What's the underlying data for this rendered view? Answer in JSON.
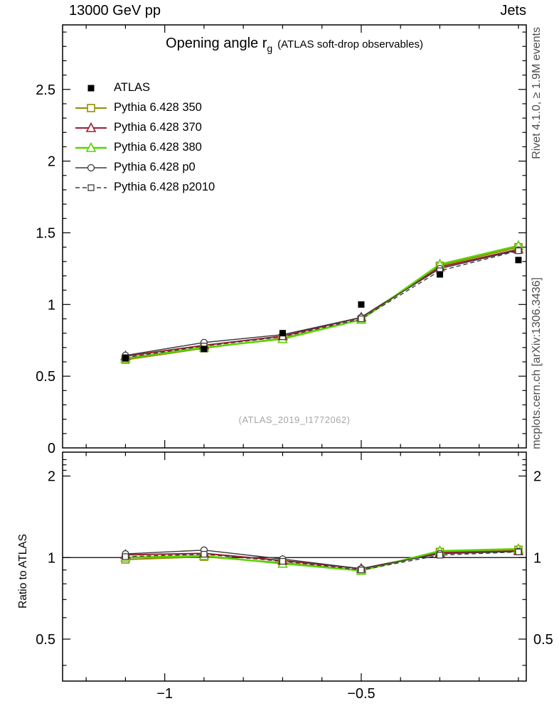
{
  "header": {
    "left": "13000 GeV pp",
    "right": "Jets"
  },
  "title": {
    "text": "Opening angle r",
    "subscript": "g",
    "suffix": "(ATLAS soft-drop observables)"
  },
  "watermark": "(ATLAS_2019_I1772062)",
  "side_notes": {
    "top": "Rivet 4.1.0, ≥ 1.9M events",
    "bottom": "mcplots.cern.ch [arXiv:1306.3436]"
  },
  "axes": {
    "ratio_ylabel": "Ratio to ATLAS"
  },
  "chart_data": {
    "type": "line",
    "title": "Opening angle r_g (ATLAS soft-drop observables)",
    "legend_position": "top-left",
    "grid": false,
    "x": [
      -1.1,
      -0.9,
      -0.7,
      -0.5,
      -0.3,
      -0.1
    ],
    "xlim": [
      -1.26,
      -0.08
    ],
    "ylim_main": [
      0,
      2.95
    ],
    "ylim_ratio": [
      0.35,
      2.45
    ],
    "ratio_scale": "log",
    "xticks_major": [
      -1,
      -0.5
    ],
    "xtick_labels": [
      "−1",
      "−0.5"
    ],
    "xticks_minor_step": 0.1,
    "yticks_main_major": [
      0,
      0.5,
      1,
      1.5,
      2,
      2.5
    ],
    "yticks_main_labels": [
      "0",
      "0.5",
      "1",
      "1.5",
      "2",
      "2.5"
    ],
    "yticks_ratio_major": [
      0.5,
      1,
      2
    ],
    "yticks_ratio_labels": [
      "0.5",
      "1",
      "2"
    ],
    "yticks_ratio_minor": [
      0.4,
      0.6,
      0.7,
      0.8,
      0.9,
      2.1,
      2.2,
      2.3
    ],
    "series": [
      {
        "name": "ATLAS",
        "marker": "filled-square",
        "color": "#000000",
        "line": "none",
        "is_reference": true,
        "values": [
          0.625,
          0.69,
          0.8,
          1.0,
          1.21,
          1.31
        ]
      },
      {
        "name": "Pythia 6.428 350",
        "marker": "open-square",
        "color": "#8f8f00",
        "line": "solid",
        "width": 2,
        "values": [
          0.615,
          0.695,
          0.765,
          0.895,
          1.27,
          1.4
        ]
      },
      {
        "name": "Pythia 6.428 370",
        "marker": "open-triangle",
        "color": "#9a2033",
        "line": "solid",
        "width": 2,
        "values": [
          0.64,
          0.715,
          0.78,
          0.91,
          1.26,
          1.385
        ]
      },
      {
        "name": "Pythia 6.428 380",
        "marker": "open-triangle",
        "color": "#5bd300",
        "line": "solid",
        "width": 2.5,
        "values": [
          0.625,
          0.7,
          0.76,
          0.895,
          1.28,
          1.41
        ]
      },
      {
        "name": "Pythia 6.428 p0",
        "marker": "open-circle",
        "color": "#3a3a3a",
        "line": "solid",
        "width": 1.4,
        "values": [
          0.645,
          0.735,
          0.79,
          0.91,
          1.25,
          1.38
        ]
      },
      {
        "name": "Pythia 6.428 p2010",
        "marker": "open-square-small",
        "color": "#3a3a3a",
        "line": "dashed",
        "width": 1.4,
        "values": [
          0.63,
          0.71,
          0.775,
          0.9,
          1.235,
          1.375
        ]
      }
    ]
  }
}
